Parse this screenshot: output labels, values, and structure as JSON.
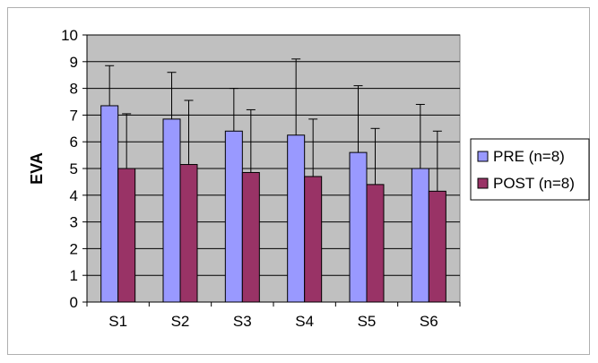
{
  "chart_data": {
    "type": "bar",
    "title": "",
    "xlabel": "",
    "ylabel": "EVA",
    "ylim": [
      0,
      10
    ],
    "yticks": [
      0,
      1,
      2,
      3,
      4,
      5,
      6,
      7,
      8,
      9,
      10
    ],
    "grid": true,
    "legend_position": "right",
    "categories": [
      "S1",
      "S2",
      "S3",
      "S4",
      "S5",
      "S6"
    ],
    "series": [
      {
        "name": "PRE (n=8)",
        "color": "#9999ff",
        "values": [
          7.35,
          6.85,
          6.4,
          6.25,
          5.6,
          5.0
        ],
        "error_upper": [
          8.85,
          8.6,
          8.0,
          9.1,
          8.1,
          7.4
        ]
      },
      {
        "name": "POST (n=8)",
        "color": "#993366",
        "values": [
          5.0,
          5.15,
          4.85,
          4.7,
          4.4,
          4.15
        ],
        "error_upper": [
          7.05,
          7.55,
          7.2,
          6.85,
          6.5,
          6.4
        ]
      }
    ],
    "plot_background": "#c0c0c0"
  }
}
